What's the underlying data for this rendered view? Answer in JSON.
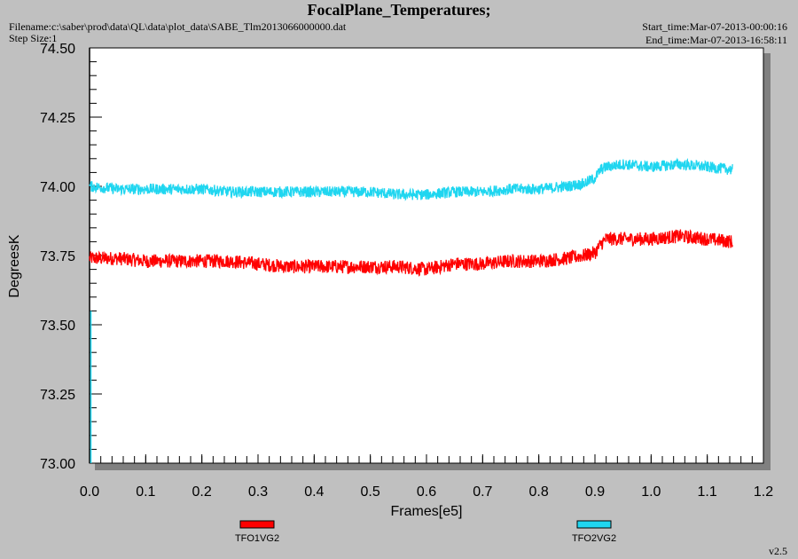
{
  "header": {
    "title": "FocalPlane_Temperatures;",
    "filename": "Filename:c:\\saber\\prod\\data\\QL\\data\\plot_data\\SABE_Tlm2013066000000.dat",
    "step_size": "Step Size:1",
    "start_time": "Start_time:Mar-07-2013-00:00:16",
    "end_time": "End_time:Mar-07-2013-16:58:11"
  },
  "version": "v2.5",
  "colors": {
    "series1": "#ff0000",
    "series2": "#1fd6f0",
    "plot_bg": "#ffffff",
    "page_bg": "#c0c0c0"
  },
  "chart_data": {
    "type": "line",
    "xlabel": "Frames[e5]",
    "ylabel": "DegreesK",
    "xlim": [
      0.0,
      1.2
    ],
    "ylim": [
      73.0,
      74.5
    ],
    "x_ticks": [
      "0.0",
      "0.1",
      "0.2",
      "0.3",
      "0.4",
      "0.5",
      "0.6",
      "0.7",
      "0.8",
      "0.9",
      "1.0",
      "1.1",
      "1.2"
    ],
    "y_ticks": [
      "73.00",
      "73.25",
      "73.50",
      "73.75",
      "74.00",
      "74.25",
      "74.50"
    ],
    "legend_placement": "bottom",
    "series": [
      {
        "name": "TFO1VG2",
        "noise": 0.025,
        "x": [
          0.0,
          0.05,
          0.1,
          0.15,
          0.2,
          0.25,
          0.3,
          0.35,
          0.4,
          0.45,
          0.5,
          0.55,
          0.6,
          0.65,
          0.7,
          0.75,
          0.8,
          0.85,
          0.88,
          0.9,
          0.91,
          0.92,
          0.95,
          1.0,
          1.05,
          1.1,
          1.145
        ],
        "y": [
          73.74,
          73.74,
          73.73,
          73.73,
          73.73,
          73.73,
          73.72,
          73.71,
          73.71,
          73.71,
          73.71,
          73.71,
          73.7,
          73.72,
          73.72,
          73.73,
          73.73,
          73.74,
          73.75,
          73.76,
          73.79,
          73.81,
          73.81,
          73.81,
          73.82,
          73.81,
          73.8
        ]
      },
      {
        "name": "TFO2VG2",
        "noise": 0.02,
        "x": [
          0.0,
          0.05,
          0.1,
          0.15,
          0.2,
          0.25,
          0.3,
          0.35,
          0.4,
          0.45,
          0.5,
          0.55,
          0.6,
          0.65,
          0.7,
          0.75,
          0.8,
          0.85,
          0.88,
          0.9,
          0.91,
          0.92,
          0.95,
          1.0,
          1.05,
          1.1,
          1.145
        ],
        "y": [
          74.0,
          73.99,
          73.99,
          73.99,
          73.99,
          73.98,
          73.98,
          73.98,
          73.98,
          73.98,
          73.98,
          73.97,
          73.97,
          73.98,
          73.98,
          73.99,
          73.99,
          74.0,
          74.01,
          74.03,
          74.06,
          74.07,
          74.08,
          74.07,
          74.08,
          74.07,
          74.06
        ]
      }
    ]
  }
}
